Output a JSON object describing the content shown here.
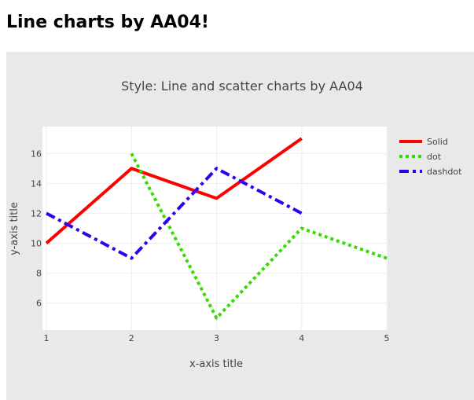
{
  "page": {
    "heading": "Line charts by AA04!"
  },
  "colors": {
    "panel_bg": "#e9e9e9",
    "plot_bg": "#ffffff",
    "grid": "#eeeeee",
    "text": "#444444"
  },
  "chart_data": {
    "type": "line",
    "title": "Style: Line and scatter charts by AA04",
    "xlabel": "x-axis title",
    "ylabel": "y-axis title",
    "xlim": [
      1,
      5
    ],
    "ylim": [
      4.2,
      17.8
    ],
    "xticks": [
      1,
      2,
      3,
      4,
      5
    ],
    "yticks": [
      6,
      8,
      10,
      12,
      14,
      16
    ],
    "grid": true,
    "legend_position": "top-right",
    "series": [
      {
        "name": "Solid",
        "dash": "solid",
        "color": "#ff0000",
        "x": [
          1,
          2,
          3,
          4
        ],
        "y": [
          10,
          15,
          13,
          17
        ]
      },
      {
        "name": "dot",
        "dash": "dot",
        "color": "#33dd00",
        "x": [
          2,
          3,
          4,
          5
        ],
        "y": [
          16,
          5,
          11,
          9
        ]
      },
      {
        "name": "dashdot",
        "dash": "dashdot",
        "color": "#3300ee",
        "x": [
          1,
          2,
          3,
          4
        ],
        "y": [
          12,
          9,
          15,
          12
        ]
      }
    ]
  }
}
